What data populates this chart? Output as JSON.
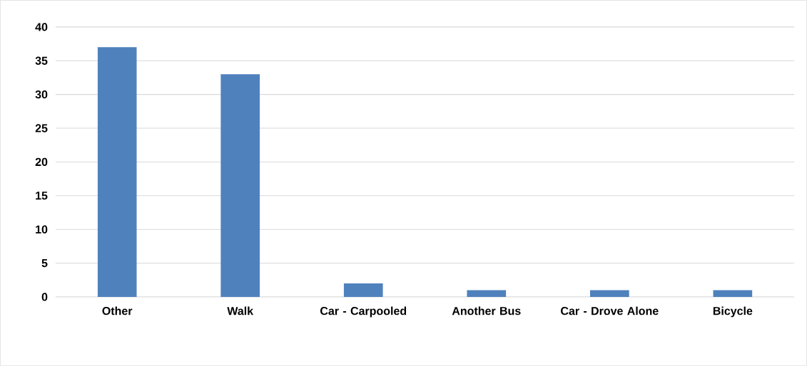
{
  "chart_data": {
    "type": "bar",
    "categories": [
      "Other",
      "Walk",
      "Car - Carpooled",
      "Another Bus",
      "Car - Drove Alone",
      "Bicycle"
    ],
    "values": [
      37,
      33,
      2,
      1,
      1,
      1
    ],
    "color": "#4f81bd",
    "ylim": [
      0,
      40
    ],
    "yticks": [
      0,
      5,
      10,
      15,
      20,
      25,
      30,
      35,
      40
    ],
    "grid": "y"
  }
}
